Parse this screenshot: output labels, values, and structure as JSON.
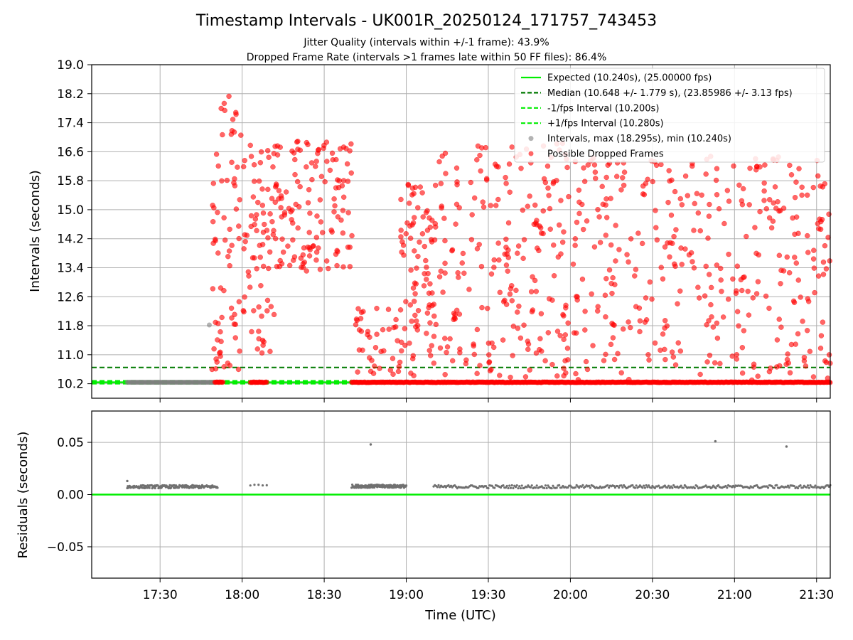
{
  "title": "Timestamp Intervals - UK001R_20250124_171757_743453",
  "subtitle1": "Jitter Quality (intervals within +/-1 frame): 43.9%",
  "subtitle2": "Dropped Frame Rate (intervals >1 frames late within 50 FF files): 86.4%",
  "chart_data": [
    {
      "type": "scatter",
      "panel": "intervals",
      "ylabel": "Intervals (seconds)",
      "ylim": [
        9.8,
        19.0
      ],
      "yticks": [
        "10.2",
        "11.0",
        "11.8",
        "12.6",
        "13.4",
        "14.2",
        "15.0",
        "15.8",
        "16.6",
        "17.4",
        "18.2",
        "19.0"
      ],
      "grid": true,
      "legend_position": "top-right",
      "lines": [
        {
          "name": "Expected (10.240s), (25.00000 fps)",
          "y": 10.24,
          "style": "solid",
          "color": "#00ee00"
        },
        {
          "name": "Median (10.648 +/- 1.779 s), (23.85986 +/- 3.13 fps)",
          "y": 10.648,
          "style": "dashed",
          "color": "#007a00"
        },
        {
          "name": "-1/fps Interval (10.200s)",
          "y": 10.2,
          "style": "dashed",
          "color": "#00ee00"
        },
        {
          "name": "+1/fps Interval (10.280s)",
          "y": 10.28,
          "style": "dashed",
          "color": "#00ee00"
        }
      ],
      "series": [
        {
          "name": "Intervals, max (18.295s), min (10.240s)",
          "color": "#808080",
          "points": [
            [
              "17:48",
              11.82
            ]
          ],
          "baseline_band": {
            "from": "17:18",
            "to": "17:50",
            "y": 10.24
          }
        },
        {
          "name": "Possible Dropped Frames",
          "color": "#ff0000",
          "dense_baseline_segments": [
            [
              "17:50",
              "17:53"
            ],
            [
              "18:03",
              "18:09"
            ],
            [
              "18:40",
              "21:35"
            ]
          ],
          "clusters": [
            {
              "from": "17:49",
              "to": "18:00",
              "ymin": 10.5,
              "ymax": 18.3,
              "count": 70
            },
            {
              "from": "18:00",
              "to": "18:12",
              "ymin": 11.0,
              "ymax": 16.8,
              "count": 70
            },
            {
              "from": "18:12",
              "to": "18:41",
              "ymin": 13.3,
              "ymax": 17.0,
              "count": 130
            },
            {
              "from": "18:41",
              "to": "18:58",
              "ymin": 10.3,
              "ymax": 12.3,
              "count": 40
            },
            {
              "from": "18:58",
              "to": "19:12",
              "ymin": 10.4,
              "ymax": 15.7,
              "count": 90
            },
            {
              "from": "19:12",
              "to": "20:05",
              "ymin": 10.3,
              "ymax": 16.9,
              "count": 230
            },
            {
              "from": "20:05",
              "to": "21:35",
              "ymin": 10.3,
              "ymax": 16.5,
              "count": 330
            }
          ]
        }
      ]
    },
    {
      "type": "scatter",
      "panel": "residuals",
      "xlabel": "Time (UTC)",
      "ylabel": "Residuals (seconds)",
      "xlim": [
        "17:05",
        "21:35"
      ],
      "xticks": [
        "17:30",
        "18:00",
        "18:30",
        "19:00",
        "19:30",
        "20:00",
        "20:30",
        "21:00",
        "21:30"
      ],
      "ylim": [
        -0.08,
        0.08
      ],
      "yticks": [
        "−0.05",
        "0.00",
        "0.05"
      ],
      "grid": true,
      "reference_line": {
        "y": 0.0,
        "color": "#00ee00"
      },
      "series": [
        {
          "color": "#707070",
          "segments": [
            {
              "from": "17:18",
              "to": "17:51",
              "y": 0.0075,
              "count": 160
            },
            {
              "from": "18:03",
              "to": "18:09",
              "y": 0.0085,
              "count": 5
            },
            {
              "from": "18:40",
              "to": "19:00",
              "y": 0.008,
              "count": 150
            },
            {
              "from": "19:10",
              "to": "21:35",
              "y": 0.0075,
              "count": 320
            }
          ],
          "outliers": [
            [
              "18:47",
              0.048
            ],
            [
              "20:53",
              0.051
            ],
            [
              "21:19",
              0.046
            ],
            [
              "17:18",
              0.013
            ]
          ]
        }
      ]
    }
  ],
  "colors": {
    "red": "#ff0000",
    "grey": "#808080",
    "green": "#00ee00",
    "darkgreen": "#007a00",
    "grid": "#b0b0b0"
  }
}
